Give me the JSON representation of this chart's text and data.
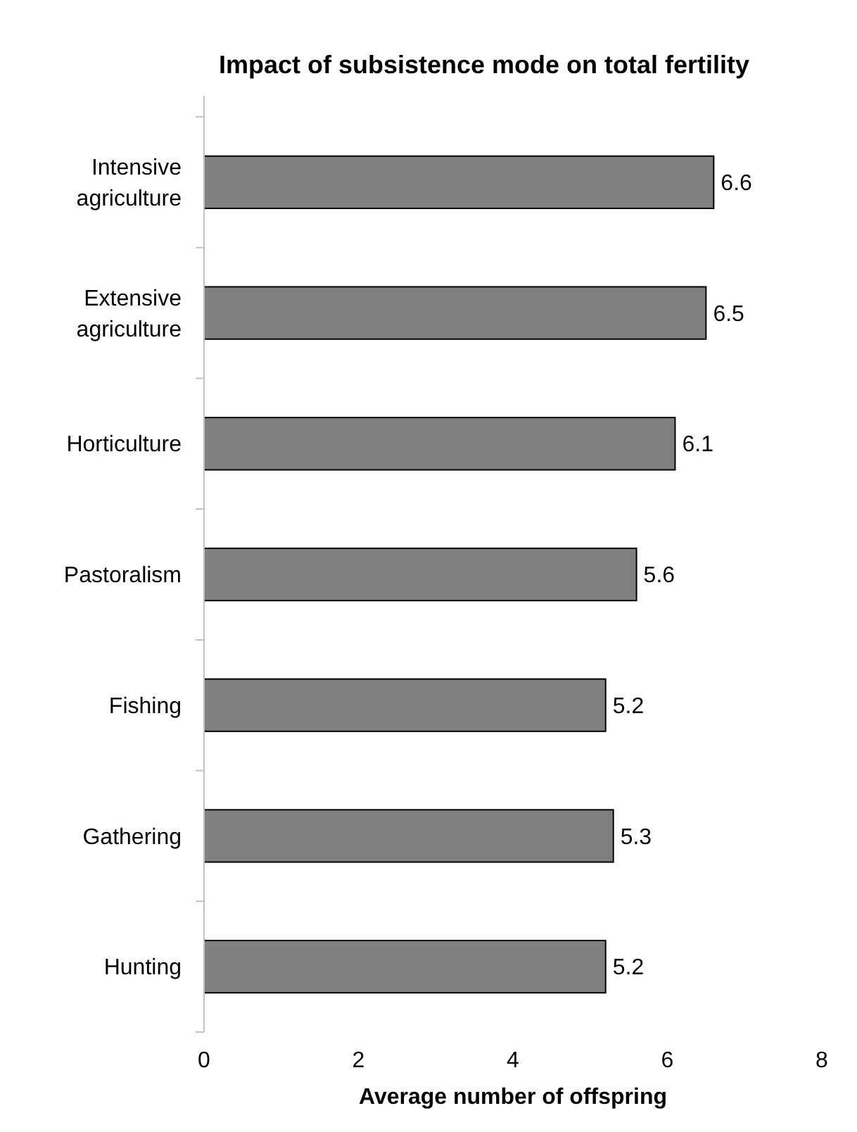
{
  "chart_data": {
    "type": "bar",
    "orientation": "horizontal",
    "title": "Impact of subsistence mode on total fertility",
    "xlabel": "Average number of offspring",
    "categories": [
      "Intensive agriculture",
      "Extensive agriculture",
      "Horticulture",
      "Pastoralism",
      "Fishing",
      "Gathering",
      "Hunting"
    ],
    "values": [
      6.6,
      6.5,
      6.1,
      5.6,
      5.2,
      5.3,
      5.2
    ],
    "color": "#808080",
    "xlim": [
      0,
      8
    ],
    "xticks": [
      0,
      2,
      4,
      6,
      8
    ],
    "data_labels": true,
    "grid": false
  }
}
